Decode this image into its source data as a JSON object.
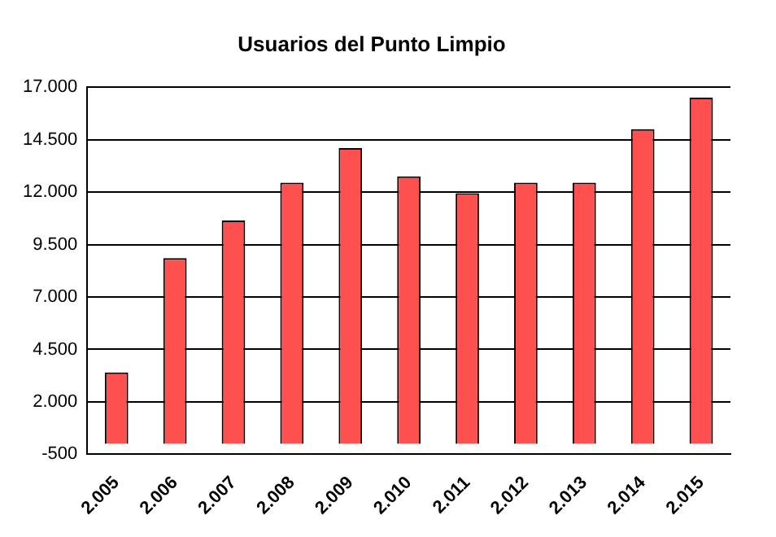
{
  "chart_data": {
    "type": "bar",
    "title": "Usuarios del Punto Limpio",
    "categories": [
      "2.005",
      "2.006",
      "2.007",
      "2.008",
      "2.009",
      "2.010",
      "2.011",
      "2.012",
      "2.013",
      "2.014",
      "2.015"
    ],
    "values": [
      3400,
      8850,
      10650,
      12450,
      14100,
      12750,
      11950,
      12450,
      12450,
      15000,
      16500
    ],
    "color": "#ff5050",
    "ylim": [
      -500,
      17000
    ],
    "yticks": [
      {
        "value": -500,
        "label": "-500"
      },
      {
        "value": 2000,
        "label": "2.000"
      },
      {
        "value": 4500,
        "label": "4.500"
      },
      {
        "value": 7000,
        "label": "7.000"
      },
      {
        "value": 9500,
        "label": "9.500"
      },
      {
        "value": 12000,
        "label": "12.000"
      },
      {
        "value": 14500,
        "label": "14.500"
      },
      {
        "value": 17000,
        "label": "17.000"
      }
    ],
    "grid": "y",
    "legend": false
  }
}
